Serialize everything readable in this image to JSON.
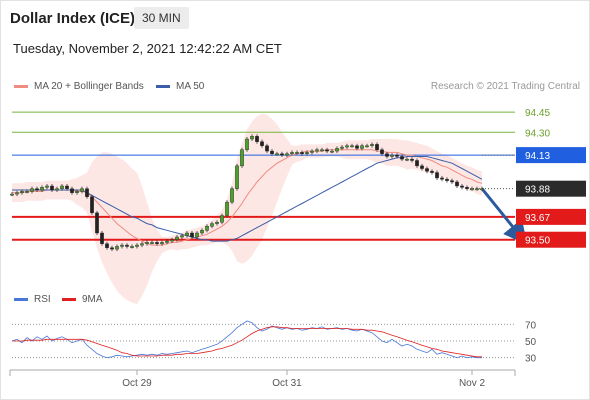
{
  "header": {
    "title": "Dollar Index (ICE)",
    "timeframe": "30 MIN",
    "datetime": "Tuesday, November 2, 2021 12:42:22 AM CET"
  },
  "legend": {
    "ma20": {
      "label": "MA 20 + Bollinger Bands",
      "color": "#f08b80"
    },
    "ma50": {
      "label": "MA 50",
      "color": "#3a5ea8"
    },
    "rsi": {
      "label": "RSI",
      "color": "#4a78d8"
    },
    "ma9": {
      "label": "9MA",
      "color": "#e02020"
    }
  },
  "credit": "Research © 2021 Trading Central",
  "chart_data": [
    {
      "type": "line",
      "title": "Dollar Index (ICE)",
      "ylim": [
        93.2,
        94.6
      ],
      "x_ticks": [
        {
          "label": "Oct 29",
          "index": 25
        },
        {
          "label": "Oct 31",
          "index": 55
        },
        {
          "label": "Nov 2",
          "index": 92
        }
      ],
      "levels": [
        {
          "value": 94.45,
          "label": "94.45",
          "kind": "resistance",
          "color": "#78b440"
        },
        {
          "value": 94.3,
          "label": "94.30",
          "kind": "resistance",
          "color": "#78b440"
        },
        {
          "value": 94.13,
          "label": "94.13",
          "kind": "pivot",
          "color": "#1f5fe0"
        },
        {
          "value": 93.88,
          "label": "93.88",
          "kind": "last",
          "color": "#2b2b2b"
        },
        {
          "value": 93.67,
          "label": "93.67",
          "kind": "support",
          "color": "#e21a1a"
        },
        {
          "value": 93.5,
          "label": "93.50",
          "kind": "support",
          "color": "#e21a1a"
        }
      ],
      "close": [
        93.84,
        93.85,
        93.86,
        93.86,
        93.88,
        93.87,
        93.89,
        93.9,
        93.87,
        93.88,
        93.9,
        93.88,
        93.85,
        93.86,
        93.88,
        93.82,
        93.7,
        93.55,
        93.47,
        93.44,
        93.43,
        93.45,
        93.46,
        93.45,
        93.45,
        93.46,
        93.47,
        93.48,
        93.48,
        93.47,
        93.48,
        93.49,
        93.5,
        93.52,
        93.53,
        93.55,
        93.52,
        93.55,
        93.57,
        93.6,
        93.62,
        93.63,
        93.68,
        93.78,
        93.88,
        94.05,
        94.17,
        94.25,
        94.27,
        94.23,
        94.2,
        94.16,
        94.14,
        94.14,
        94.13,
        94.14,
        94.15,
        94.15,
        94.14,
        94.15,
        94.16,
        94.17,
        94.17,
        94.16,
        94.16,
        94.18,
        94.19,
        94.2,
        94.2,
        94.18,
        94.2,
        94.2,
        94.21,
        94.17,
        94.14,
        94.12,
        94.13,
        94.12,
        94.1,
        94.1,
        94.09,
        94.05,
        94.03,
        94.01,
        94.0,
        93.96,
        93.95,
        93.94,
        93.93,
        93.9,
        93.89,
        93.88,
        93.88,
        93.88,
        93.88
      ],
      "ma20": [
        93.85,
        93.85,
        93.85,
        93.86,
        93.86,
        93.86,
        93.86,
        93.87,
        93.87,
        93.87,
        93.87,
        93.87,
        93.87,
        93.86,
        93.86,
        93.85,
        93.82,
        93.78,
        93.74,
        93.7,
        93.66,
        93.62,
        93.59,
        93.56,
        93.53,
        93.51,
        93.49,
        93.47,
        93.46,
        93.46,
        93.46,
        93.47,
        93.48,
        93.48,
        93.49,
        93.5,
        93.51,
        93.52,
        93.53,
        93.54,
        93.56,
        93.58,
        93.6,
        93.63,
        93.67,
        93.72,
        93.77,
        93.83,
        93.88,
        93.93,
        93.97,
        94.01,
        94.04,
        94.07,
        94.09,
        94.11,
        94.13,
        94.14,
        94.15,
        94.16,
        94.16,
        94.16,
        94.16,
        94.17,
        94.17,
        94.17,
        94.17,
        94.17,
        94.17,
        94.17,
        94.17,
        94.17,
        94.17,
        94.16,
        94.16,
        94.15,
        94.15,
        94.15,
        94.14,
        94.13,
        94.13,
        94.12,
        94.11,
        94.1,
        94.09,
        94.07,
        94.05,
        94.04,
        94.02,
        94.0,
        93.98,
        93.96,
        93.95,
        93.93,
        93.92
      ],
      "bb_upper": [
        93.92,
        93.92,
        93.92,
        93.93,
        93.93,
        93.93,
        93.93,
        93.94,
        93.94,
        93.94,
        93.94,
        93.94,
        93.95,
        93.96,
        93.98,
        94.0,
        94.08,
        94.12,
        94.15,
        94.15,
        94.14,
        94.12,
        94.1,
        94.07,
        94.03,
        94.0,
        93.9,
        93.78,
        93.66,
        93.58,
        93.52,
        93.52,
        93.53,
        93.54,
        93.55,
        93.57,
        93.58,
        93.59,
        93.6,
        93.62,
        93.65,
        93.68,
        93.72,
        93.8,
        93.92,
        94.1,
        94.22,
        94.32,
        94.38,
        94.42,
        94.44,
        94.43,
        94.4,
        94.36,
        94.3,
        94.25,
        94.2,
        94.2,
        94.21,
        94.21,
        94.21,
        94.21,
        94.21,
        94.22,
        94.22,
        94.22,
        94.23,
        94.24,
        94.24,
        94.24,
        94.24,
        94.24,
        94.25,
        94.25,
        94.25,
        94.25,
        94.25,
        94.25,
        94.24,
        94.24,
        94.23,
        94.22,
        94.21,
        94.2,
        94.18,
        94.16,
        94.14,
        94.13,
        94.11,
        94.09,
        94.07,
        94.05,
        94.04,
        94.02,
        94.01
      ],
      "bb_lower": [
        93.78,
        93.78,
        93.78,
        93.79,
        93.79,
        93.79,
        93.79,
        93.8,
        93.8,
        93.8,
        93.8,
        93.8,
        93.79,
        93.76,
        93.74,
        93.7,
        93.56,
        93.44,
        93.33,
        93.25,
        93.18,
        93.12,
        93.08,
        93.05,
        93.03,
        93.02,
        93.08,
        93.16,
        93.26,
        93.34,
        93.4,
        93.42,
        93.43,
        93.42,
        93.43,
        93.43,
        93.44,
        93.45,
        93.46,
        93.46,
        93.47,
        93.48,
        93.48,
        93.46,
        93.42,
        93.34,
        93.32,
        93.34,
        93.38,
        93.44,
        93.5,
        93.59,
        93.68,
        93.78,
        93.88,
        93.97,
        94.06,
        94.08,
        94.09,
        94.11,
        94.11,
        94.11,
        94.11,
        94.12,
        94.12,
        94.12,
        94.11,
        94.1,
        94.1,
        94.1,
        94.1,
        94.1,
        94.09,
        94.07,
        94.07,
        94.05,
        94.05,
        94.05,
        94.04,
        94.02,
        94.03,
        94.02,
        94.01,
        94.0,
        94.0,
        93.98,
        93.96,
        93.95,
        93.93,
        93.91,
        93.89,
        93.87,
        93.86,
        93.84,
        93.83
      ],
      "ma50": [
        93.87,
        93.87,
        93.87,
        93.87,
        93.87,
        93.87,
        93.87,
        93.87,
        93.87,
        93.87,
        93.87,
        93.87,
        93.87,
        93.87,
        93.87,
        93.85,
        93.83,
        93.81,
        93.79,
        93.77,
        93.75,
        93.73,
        93.71,
        93.69,
        93.67,
        93.66,
        93.64,
        93.62,
        93.61,
        93.59,
        93.58,
        93.57,
        93.56,
        93.55,
        93.54,
        93.53,
        93.52,
        93.51,
        93.5,
        93.5,
        93.49,
        93.49,
        93.49,
        93.49,
        93.5,
        93.51,
        93.53,
        93.55,
        93.57,
        93.59,
        93.61,
        93.63,
        93.65,
        93.67,
        93.69,
        93.71,
        93.73,
        93.75,
        93.77,
        93.79,
        93.81,
        93.83,
        93.85,
        93.87,
        93.89,
        93.91,
        93.93,
        93.95,
        93.97,
        93.99,
        94.01,
        94.03,
        94.05,
        94.07,
        94.08,
        94.09,
        94.1,
        94.11,
        94.11,
        94.12,
        94.12,
        94.12,
        94.12,
        94.12,
        94.11,
        94.1,
        94.09,
        94.08,
        94.07,
        94.05,
        94.03,
        94.01,
        93.99,
        93.97,
        93.95
      ],
      "projection": {
        "from_index": 94,
        "from": 93.88,
        "to_index": 102,
        "to": 93.5
      }
    },
    {
      "type": "line",
      "title": "RSI",
      "ylim": [
        20,
        80
      ],
      "y_ticks": [
        30,
        50,
        70
      ],
      "rsi": [
        50,
        52,
        48,
        54,
        50,
        55,
        52,
        56,
        50,
        53,
        55,
        52,
        48,
        50,
        52,
        45,
        40,
        35,
        32,
        30,
        31,
        33,
        32,
        31,
        32,
        33,
        34,
        33,
        34,
        33,
        35,
        34,
        35,
        36,
        37,
        38,
        36,
        38,
        40,
        42,
        44,
        46,
        50,
        55,
        60,
        66,
        70,
        74,
        72,
        66,
        62,
        64,
        68,
        66,
        64,
        66,
        64,
        65,
        63,
        64,
        66,
        65,
        67,
        64,
        65,
        66,
        64,
        65,
        63,
        62,
        64,
        62,
        60,
        55,
        50,
        48,
        52,
        48,
        44,
        46,
        44,
        40,
        38,
        36,
        40,
        34,
        36,
        34,
        32,
        30,
        32,
        30,
        31,
        30,
        30
      ],
      "ma9": [
        50,
        50,
        50,
        51,
        51,
        51,
        51,
        52,
        52,
        52,
        52,
        52,
        52,
        52,
        52,
        51,
        49,
        47,
        45,
        43,
        41,
        39,
        36,
        35,
        33,
        32,
        32,
        32,
        32,
        32,
        33,
        33,
        33,
        34,
        34,
        35,
        35,
        35,
        36,
        37,
        38,
        40,
        41,
        43,
        45,
        48,
        51,
        55,
        59,
        62,
        64,
        66,
        67,
        67,
        66,
        66,
        65,
        65,
        65,
        65,
        65,
        65,
        65,
        65,
        65,
        65,
        65,
        65,
        64,
        64,
        64,
        63,
        63,
        62,
        61,
        59,
        57,
        55,
        53,
        51,
        49,
        47,
        45,
        43,
        41,
        40,
        38,
        37,
        36,
        35,
        34,
        33,
        32,
        31,
        31
      ]
    }
  ]
}
